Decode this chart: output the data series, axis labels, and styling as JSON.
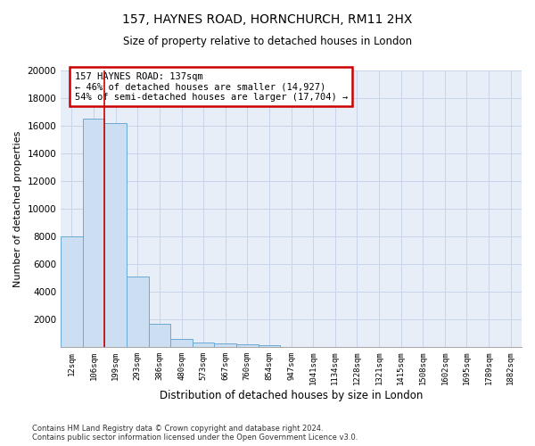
{
  "title_line1": "157, HAYNES ROAD, HORNCHURCH, RM11 2HX",
  "title_line2": "Size of property relative to detached houses in London",
  "xlabel": "Distribution of detached houses by size in London",
  "ylabel": "Number of detached properties",
  "categories": [
    "12sqm",
    "106sqm",
    "199sqm",
    "293sqm",
    "386sqm",
    "480sqm",
    "573sqm",
    "667sqm",
    "760sqm",
    "854sqm",
    "947sqm",
    "1041sqm",
    "1134sqm",
    "1228sqm",
    "1321sqm",
    "1415sqm",
    "1508sqm",
    "1602sqm",
    "1695sqm",
    "1789sqm",
    "1882sqm"
  ],
  "values": [
    8000,
    16500,
    16200,
    5100,
    1700,
    600,
    350,
    280,
    200,
    150,
    0,
    0,
    0,
    0,
    0,
    0,
    0,
    0,
    0,
    0,
    0
  ],
  "bar_color": "#ccdff2",
  "bar_edge_color": "#6aaad4",
  "vline_x": 1.5,
  "vline_color": "#cc0000",
  "annotation_text": "157 HAYNES ROAD: 137sqm\n← 46% of detached houses are smaller (14,927)\n54% of semi-detached houses are larger (17,704) →",
  "annotation_box_color": "#ffffff",
  "annotation_box_edge": "#cc0000",
  "ylim": [
    0,
    20000
  ],
  "yticks": [
    0,
    2000,
    4000,
    6000,
    8000,
    10000,
    12000,
    14000,
    16000,
    18000,
    20000
  ],
  "footer_line1": "Contains HM Land Registry data © Crown copyright and database right 2024.",
  "footer_line2": "Contains public sector information licensed under the Open Government Licence v3.0.",
  "grid_color": "#c8d4e8",
  "background_color": "#e8eef8"
}
